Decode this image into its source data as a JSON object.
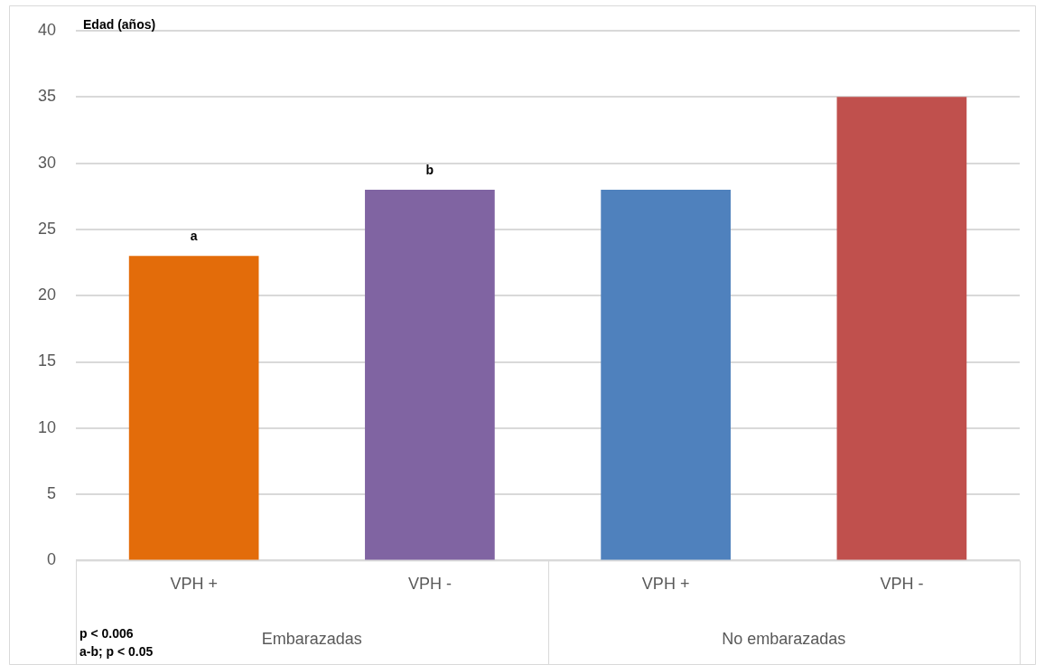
{
  "chart_data": {
    "type": "bar",
    "ylabel": "Edad (años)",
    "categories": [
      "VPH +",
      "VPH -",
      "VPH +",
      "VPH -"
    ],
    "values": [
      23,
      28,
      28,
      35
    ],
    "colors": [
      "#e36c0a",
      "#8064a2",
      "#4f81bd",
      "#c0504d"
    ],
    "ylim": [
      0,
      40
    ],
    "yticks": [
      0,
      5,
      10,
      15,
      20,
      25,
      30,
      35,
      40
    ],
    "grid": "y",
    "legend": false,
    "annotations": [
      {
        "text": "a",
        "x": "VPH +",
        "y": 23
      },
      {
        "text": "b",
        "x": "VPH -",
        "y": 28
      },
      "Embarazadas",
      "No embarazadas",
      "p < 0.006\na-b; p < 0.05"
    ]
  }
}
